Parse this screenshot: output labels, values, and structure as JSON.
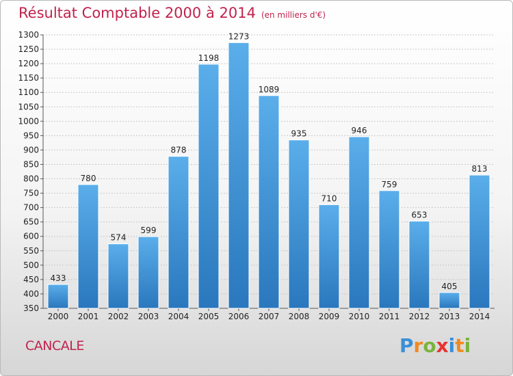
{
  "city": "CANCALE",
  "logo": {
    "letters": [
      "P",
      "r",
      "o",
      "x",
      "i",
      "t",
      "i"
    ],
    "colors": [
      "#3a8fd8",
      "#f08a1f",
      "#7ab33c",
      "#e8322f",
      "#3a8fd8",
      "#f08a1f",
      "#7ab33c"
    ]
  },
  "chart_data": {
    "type": "bar",
    "title": "Résultat Comptable 2000 à 2014",
    "subtitle": "(en milliers d'€)",
    "categories": [
      "2000",
      "2001",
      "2002",
      "2003",
      "2004",
      "2005",
      "2006",
      "2007",
      "2008",
      "2009",
      "2010",
      "2011",
      "2012",
      "2013",
      "2014"
    ],
    "values": [
      433,
      780,
      574,
      599,
      878,
      1198,
      1273,
      1089,
      935,
      710,
      946,
      759,
      653,
      405,
      813
    ],
    "ylim": [
      350,
      1300
    ],
    "ytick_step": 50,
    "grid": "dashed-horizontal",
    "bar_color": "#3d8fd4",
    "title_color": "#c0224b"
  }
}
